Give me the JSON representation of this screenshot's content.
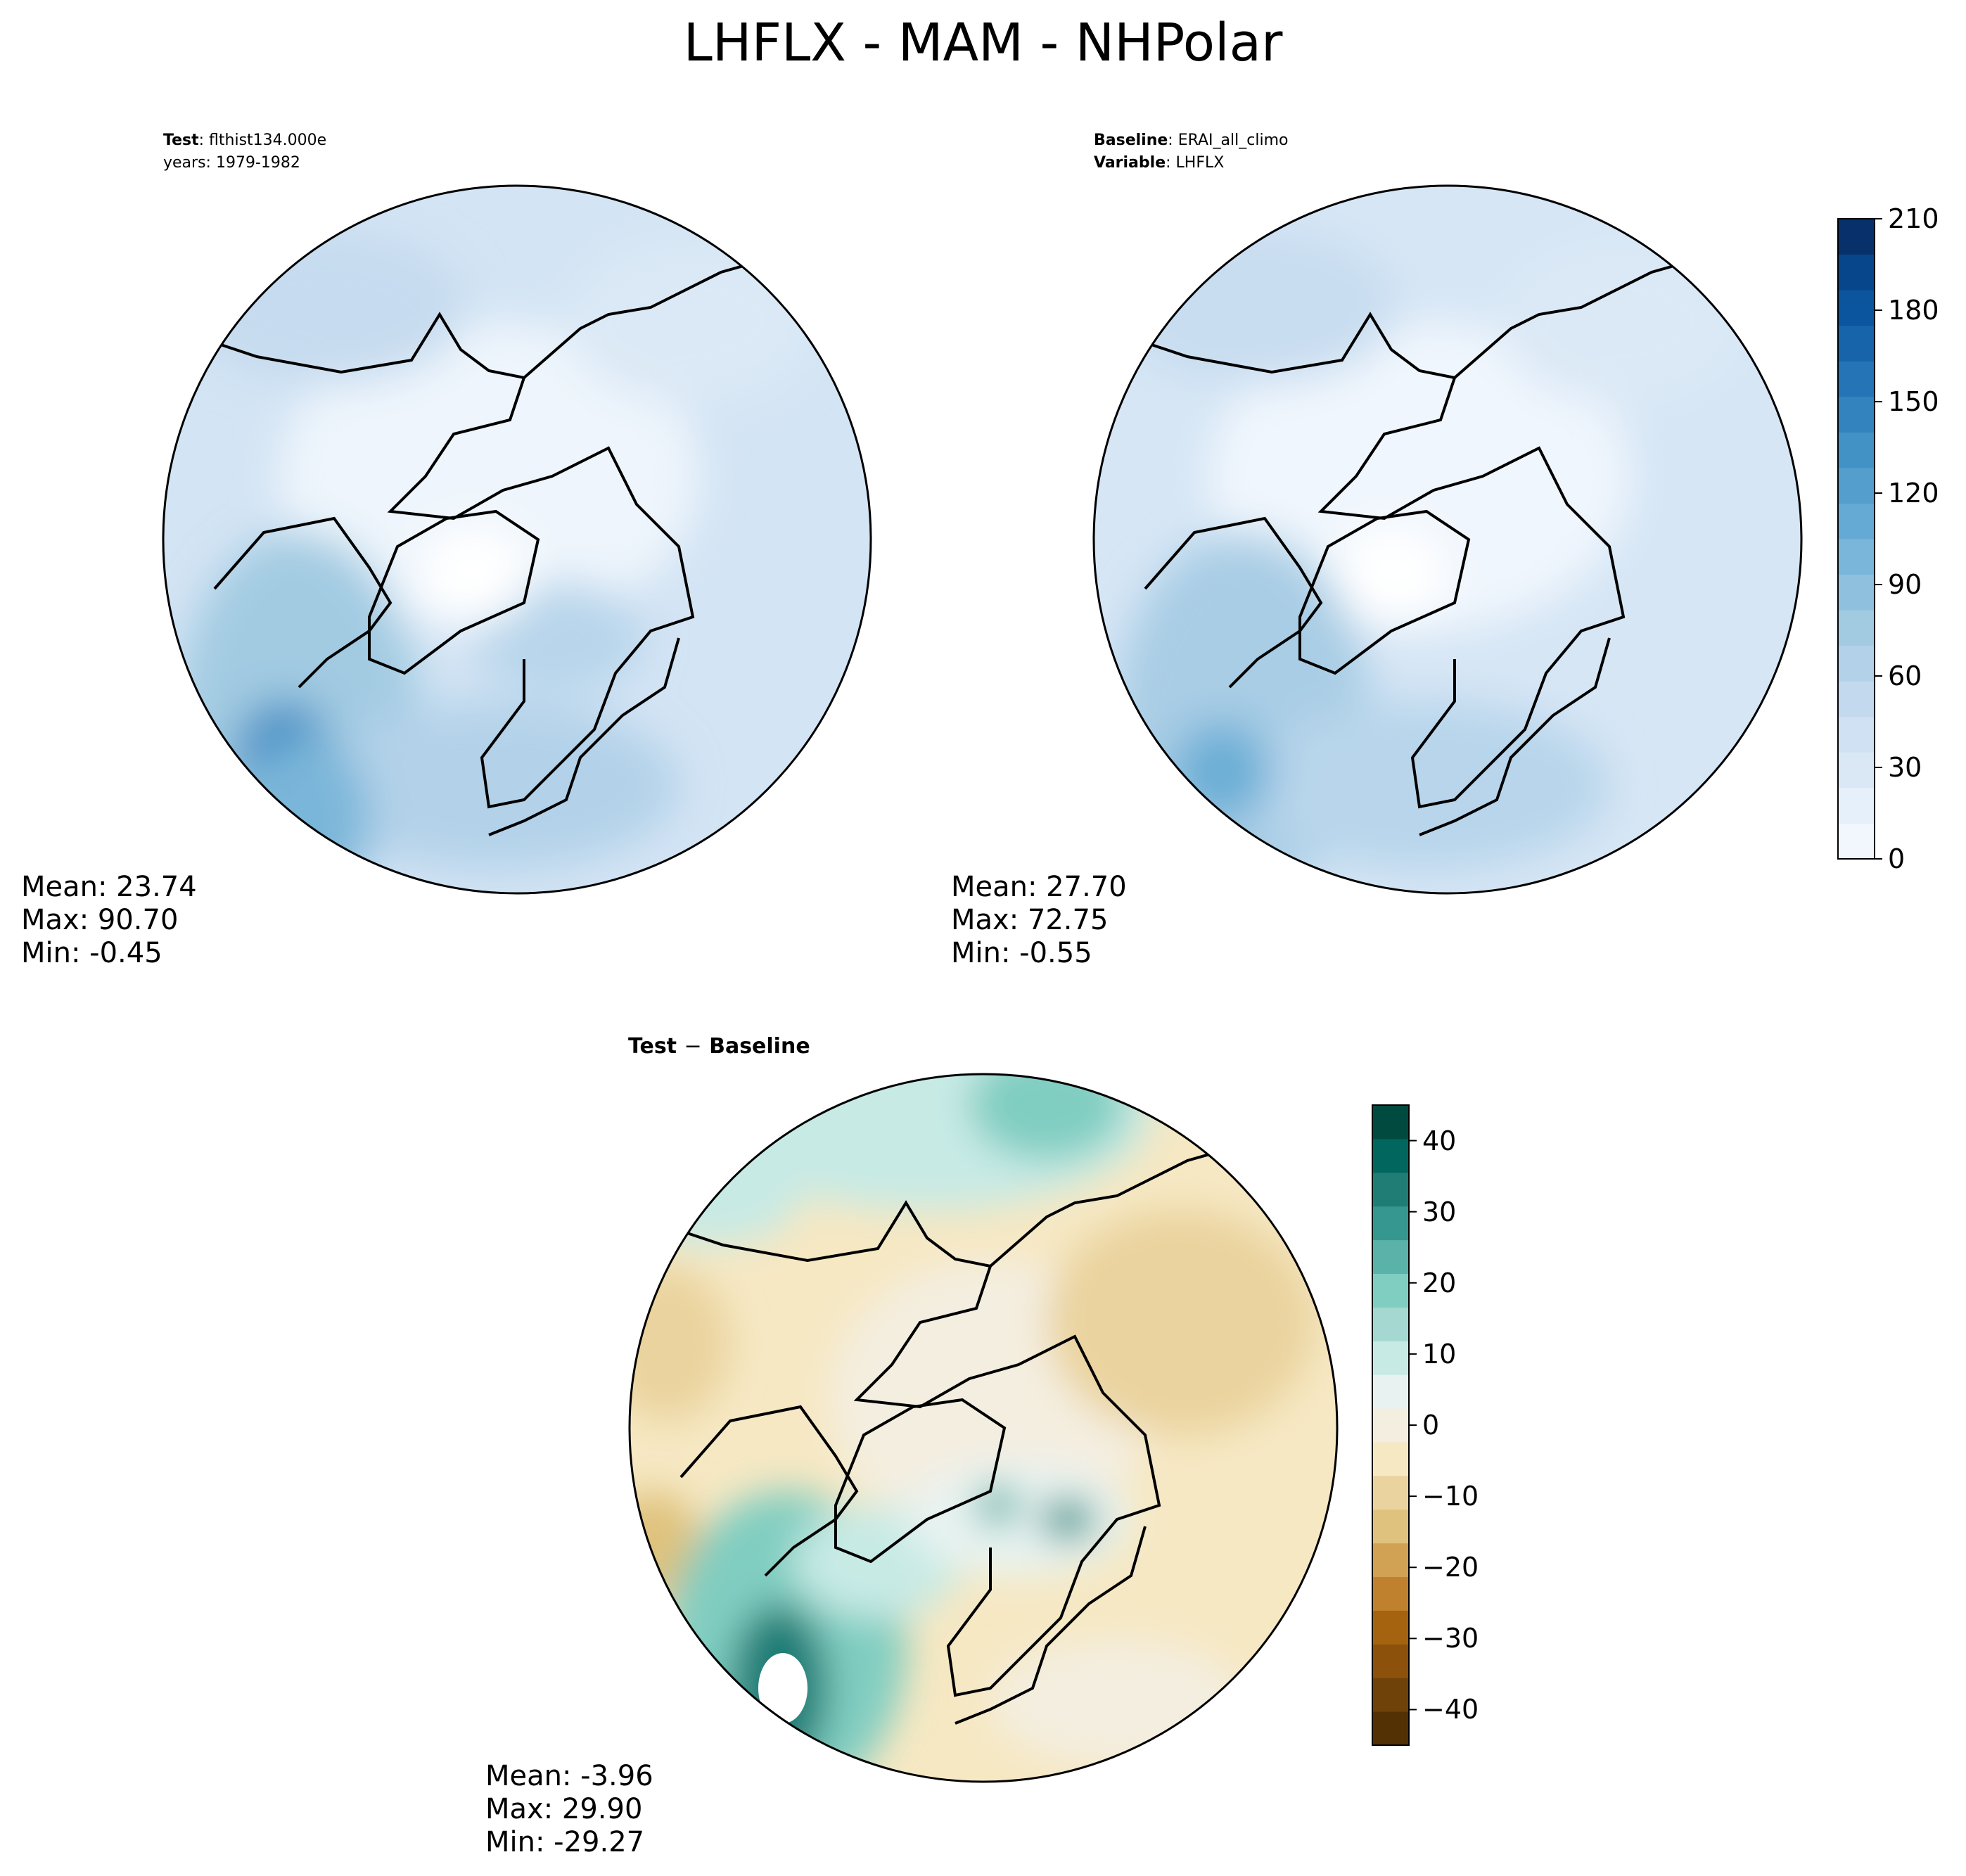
{
  "title": "LHFLX - MAM - NHPolar",
  "test_panel": {
    "label_key": "Test",
    "label_value": "flthist134.000e",
    "years": "years: 1979-1982",
    "mean": "Mean: 23.74",
    "max": "Max: 90.70",
    "min": "Min: -0.45"
  },
  "baseline_panel": {
    "label_key": "Baseline",
    "label_value": "ERAI_all_climo",
    "variable_key": "Variable",
    "variable_value": "LHFLX",
    "mean": "Mean: 27.70",
    "max": "Max: 72.75",
    "min": "Min: -0.55"
  },
  "diff_panel": {
    "title_left": "Test",
    "title_op": "−",
    "title_right": "Baseline",
    "mean": "Mean: -3.96",
    "max": "Max: 29.90",
    "min": "Min: -29.27"
  },
  "colorbar_main": {
    "ticks": [
      "0",
      "30",
      "60",
      "90",
      "120",
      "150",
      "180",
      "210"
    ],
    "range": [
      0,
      210
    ],
    "colors": [
      "#f2f7fd",
      "#e6f0fa",
      "#dae8f6",
      "#cfe1f2",
      "#c2d9ee",
      "#b3d2e9",
      "#a2cbe2",
      "#8fc1de",
      "#7ab6d9",
      "#65aad4",
      "#539ecd",
      "#4292c6",
      "#3383be",
      "#2474b6",
      "#1764ab",
      "#0b559f",
      "#08468b",
      "#08306b"
    ]
  },
  "colorbar_diff": {
    "ticks": [
      "40",
      "30",
      "20",
      "10",
      "0",
      "−10",
      "−20",
      "−30",
      "−40"
    ],
    "range": [
      -45,
      45
    ],
    "colors": [
      "#543005",
      "#6f420a",
      "#8c510a",
      "#a5630f",
      "#bf812d",
      "#d1a253",
      "#dfc27d",
      "#ead39e",
      "#f6e8c3",
      "#f4eee0",
      "#e8f3f1",
      "#c7eae5",
      "#a4d8d0",
      "#80cdc1",
      "#5ab2a8",
      "#35978f",
      "#1f7d76",
      "#01665e",
      "#004a40"
    ]
  }
}
